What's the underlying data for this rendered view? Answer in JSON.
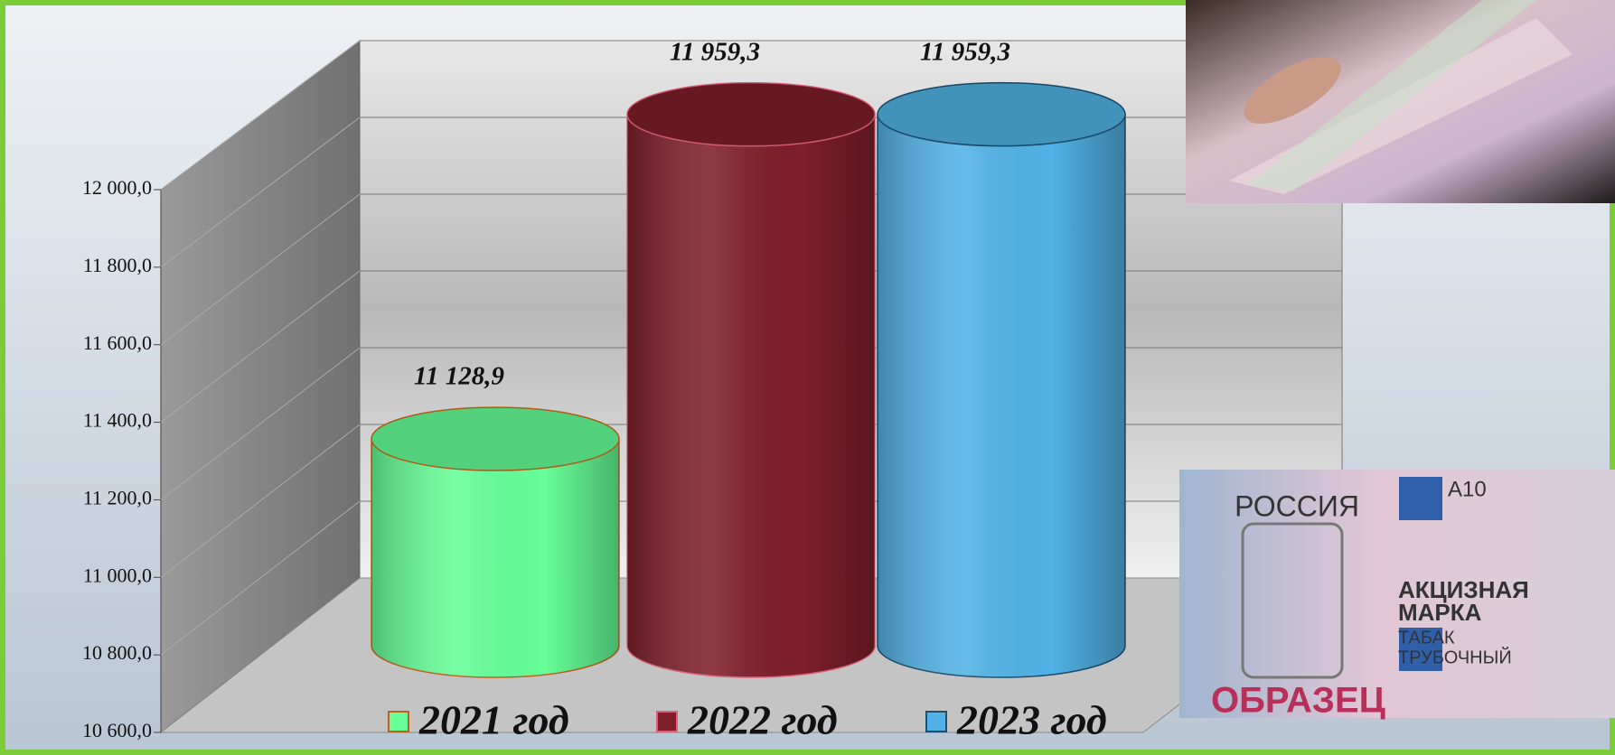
{
  "chart_data": {
    "type": "bar",
    "categories": [
      null
    ],
    "series": [
      {
        "name": "2021 год",
        "color": "#66ff99",
        "edge": "#c0621a",
        "values": [
          11128.9
        ],
        "value_labels": [
          "11 128,9"
        ]
      },
      {
        "name": "2022 год",
        "color": "#7e1f2a",
        "edge": "#e0607a",
        "values": [
          11959.3
        ],
        "value_labels": [
          "11 959,3"
        ]
      },
      {
        "name": "2023 год",
        "color": "#52b2e6",
        "edge": "#1d4f70",
        "values": [
          11959.3
        ],
        "value_labels": [
          "11 959,3"
        ]
      }
    ],
    "ylim": [
      10600,
      12000
    ],
    "yticks": [
      {
        "value": 10600,
        "label": "10 600,0"
      },
      {
        "value": 10800,
        "label": "10 800,0"
      },
      {
        "value": 11000,
        "label": "11 000,0"
      },
      {
        "value": 11200,
        "label": "11 200,0"
      },
      {
        "value": 11400,
        "label": "11 400,0"
      },
      {
        "value": 11600,
        "label": "11 600,0"
      },
      {
        "value": 11800,
        "label": "11 800,0"
      },
      {
        "value": 12000,
        "label": "12 000,0"
      }
    ],
    "grid": true
  },
  "stamp": {
    "country": "РОССИЯ",
    "code": "A10",
    "title": "АКЦИЗНАЯ",
    "title2": "МАРКА",
    "subtitle": "ТАБАК",
    "subtitle2": "ТРУБОЧНЫЙ",
    "sample": "ОБРАЗЕЦ"
  }
}
